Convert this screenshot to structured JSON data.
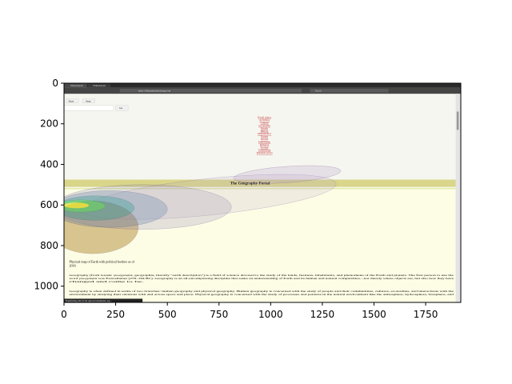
{
  "chart_data": {
    "type": "image",
    "xlim": [
      0,
      1920
    ],
    "ylim": [
      1080,
      0
    ],
    "xticks": [
      0,
      250,
      500,
      750,
      1000,
      1250,
      1500,
      1750
    ],
    "yticks": [
      0,
      200,
      400,
      600,
      800,
      1000
    ]
  },
  "screenshot": {
    "tabs": [
      "Wikianalysis",
      "Wikianalysis"
    ],
    "url": "https://wikianalysis.herokuapp.com",
    "search": "Search",
    "buttons": [
      "Start",
      "Stop",
      "Go"
    ],
    "portal_links": [
      "Portal topics",
      "Activities",
      "Culture",
      "Geography",
      "Health",
      "History",
      "Mathematics",
      "Nature",
      "People",
      "Philosophy",
      "Religion",
      "Society",
      "Technology",
      "Random portal"
    ],
    "banner": "The Geography Portal",
    "caption": [
      "Physical map of Earth with political borders as of",
      "2016"
    ],
    "paragraphs": [
      "Geography (from Greek: γεωγραφία, geographia, literally \"earth description\") is a field of science devoted to the study of the lands, features, inhabitants, and phenomena of the Earth and planets. The first person to use the",
      "word γεωγραφία was Eratosthenes (276–194 BC). Geography is an all-encompassing discipline that seeks an understanding of Earth and its human and natural complexities—not merely where objects are, but also how they have",
      "changed and come to be.",
      "Geography is often defined in terms of two branches: human geography and physical geography. Human geography is concerned with the study of people and their communities, cultures, economies, and interactions with the",
      "environment by studying their relations with and across space and place. Physical geography is concerned with the study of processes and patterns in the natural environment like the atmosphere, hydrosphere, biosphere, and"
    ],
    "status": "Transferring data from upload.wikimedia.org..."
  }
}
